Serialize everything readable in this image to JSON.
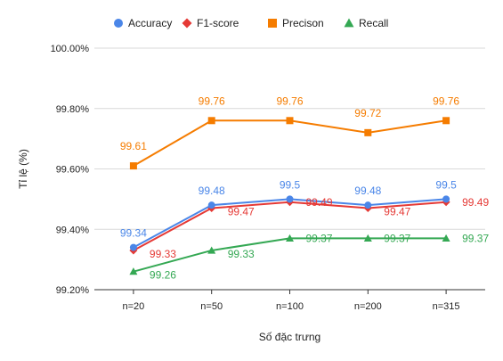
{
  "chart_data": {
    "type": "line",
    "title": "",
    "xlabel": "Số đặc trưng",
    "ylabel": "Tỉ lệ (%)",
    "categories": [
      "n=20",
      "n=50",
      "n=100",
      "n=200",
      "n=315"
    ],
    "ylim": [
      99.2,
      100.0
    ],
    "yticks": [
      99.2,
      99.4,
      99.6,
      99.8,
      100.0
    ],
    "ytick_labels": [
      "99.20%",
      "99.40%",
      "99.60%",
      "99.80%",
      "100.00%"
    ],
    "grid": true,
    "legend_position": "top",
    "series": [
      {
        "name": "Accuracy",
        "color": "#4a86e8",
        "marker": "circle",
        "values": [
          99.34,
          99.48,
          99.5,
          99.48,
          99.5
        ],
        "labels": [
          "99.34",
          "99.48",
          "99.5",
          "99.48",
          "99.5"
        ]
      },
      {
        "name": "F1-score",
        "color": "#e53935",
        "marker": "diamond",
        "values": [
          99.33,
          99.47,
          99.49,
          99.47,
          99.49
        ],
        "labels": [
          "99.33",
          "99.47",
          "99.49",
          "99.47",
          "99.49"
        ]
      },
      {
        "name": "Precison",
        "color": "#f57c00",
        "marker": "square",
        "values": [
          99.61,
          99.76,
          99.76,
          99.72,
          99.76
        ],
        "labels": [
          "99.61",
          "99.76",
          "99.76",
          "99.72",
          "99.76"
        ]
      },
      {
        "name": "Recall",
        "color": "#34a853",
        "marker": "triangle",
        "values": [
          99.26,
          99.33,
          99.37,
          99.37,
          99.37
        ],
        "labels": [
          "99.26",
          "99.33",
          "99.37",
          "99.37",
          "99.37"
        ]
      }
    ]
  }
}
